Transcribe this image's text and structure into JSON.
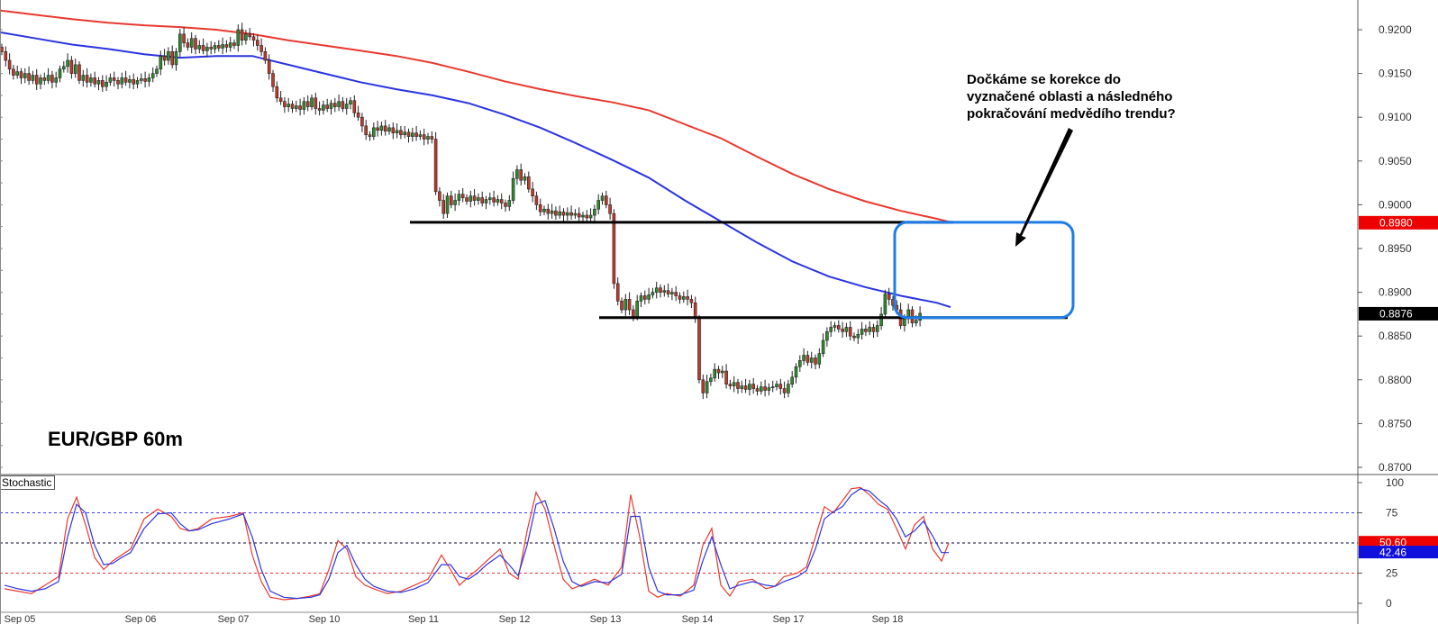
{
  "chart_data": [
    {
      "type": "candlestick",
      "title": "EUR/GBP 60m",
      "price_ticks": [
        "0.9200",
        "0.9150",
        "0.9100",
        "0.9050",
        "0.9000",
        "0.8950",
        "0.8900",
        "0.8850",
        "0.8800",
        "0.8750",
        "0.8700"
      ],
      "ylim": [
        0.87,
        0.921
      ],
      "date_ticks": [
        "Sep 05",
        "Sep 06",
        "Sep 07",
        "Sep 10",
        "Sep 11",
        "Sep 12",
        "Sep 13",
        "Sep 14",
        "Sep 17",
        "Sep 18"
      ],
      "price_series": [
        {
          "color": "#e8392f",
          "x": [
            0,
            40,
            80,
            120,
            160,
            200,
            240,
            280,
            320,
            360,
            400,
            440,
            480,
            520,
            560,
            600,
            640,
            680,
            720,
            760,
            800,
            840,
            880,
            920,
            960,
            1000,
            1040,
            1055
          ],
          "y": [
            0.9222,
            0.9217,
            0.9212,
            0.9208,
            0.9205,
            0.9203,
            0.92,
            0.9195,
            0.9188,
            0.9182,
            0.9176,
            0.917,
            0.9162,
            0.9152,
            0.9141,
            0.9132,
            0.9124,
            0.9117,
            0.9108,
            0.9092,
            0.9076,
            0.9055,
            0.9035,
            0.9018,
            0.9004,
            0.8993,
            0.8984,
            0.898
          ]
        },
        {
          "color": "#2b35e0",
          "x": [
            0,
            40,
            80,
            120,
            160,
            200,
            240,
            280,
            320,
            360,
            400,
            440,
            480,
            520,
            560,
            600,
            640,
            680,
            720,
            760,
            800,
            840,
            880,
            920,
            960,
            1000,
            1040,
            1055
          ],
          "y": [
            0.9197,
            0.919,
            0.9183,
            0.9178,
            0.9172,
            0.9168,
            0.917,
            0.917,
            0.916,
            0.915,
            0.914,
            0.9132,
            0.9125,
            0.9116,
            0.9103,
            0.9088,
            0.907,
            0.9051,
            0.9031,
            0.9005,
            0.8981,
            0.8957,
            0.8935,
            0.8918,
            0.8906,
            0.8896,
            0.8888,
            0.8883
          ]
        }
      ],
      "candles": {
        "x_start": 2,
        "x_step": 4.3,
        "close": [
          0.9175,
          0.9165,
          0.9155,
          0.9148,
          0.9152,
          0.9145,
          0.915,
          0.9142,
          0.9148,
          0.9138,
          0.9145,
          0.9142,
          0.9148,
          0.914,
          0.9145,
          0.9155,
          0.9158,
          0.9165,
          0.915,
          0.916,
          0.9142,
          0.9148,
          0.914,
          0.9145,
          0.9138,
          0.9142,
          0.9135,
          0.914,
          0.9145,
          0.9142,
          0.9138,
          0.9145,
          0.914,
          0.9143,
          0.9138,
          0.9142,
          0.9144,
          0.9141,
          0.9145,
          0.915,
          0.9155,
          0.917,
          0.9165,
          0.9175,
          0.916,
          0.9175,
          0.9195,
          0.9185,
          0.918,
          0.919,
          0.9178,
          0.9182,
          0.9176,
          0.918,
          0.9178,
          0.9182,
          0.9179,
          0.9183,
          0.918,
          0.9185,
          0.9182,
          0.92,
          0.9188,
          0.9195,
          0.9192,
          0.9188,
          0.9182,
          0.9175,
          0.9165,
          0.915,
          0.9135,
          0.9122,
          0.9118,
          0.9112,
          0.9115,
          0.911,
          0.9113,
          0.9109,
          0.9118,
          0.9112,
          0.9122,
          0.911,
          0.9108,
          0.9114,
          0.911,
          0.9116,
          0.9112,
          0.9118,
          0.911,
          0.9115,
          0.9119,
          0.9105,
          0.91,
          0.909,
          0.908,
          0.9078,
          0.9088,
          0.9085,
          0.909,
          0.9084,
          0.9088,
          0.9082,
          0.9085,
          0.908,
          0.9083,
          0.9078,
          0.9082,
          0.9078,
          0.908,
          0.9075,
          0.9078,
          0.9075,
          0.9015,
          0.9005,
          0.899,
          0.901,
          0.9,
          0.9005,
          0.9012,
          0.9008,
          0.9004,
          0.901,
          0.9005,
          0.9008,
          0.9002,
          0.9006,
          0.9008,
          0.9003,
          0.9006,
          0.9002,
          0.8998,
          0.9005,
          0.903,
          0.904,
          0.9028,
          0.9032,
          0.9018,
          0.901,
          0.9,
          0.8992,
          0.8995,
          0.899,
          0.8993,
          0.8988,
          0.8992,
          0.8988,
          0.8991,
          0.8988,
          0.899,
          0.8986,
          0.8988,
          0.8985,
          0.8988,
          0.8995,
          0.9005,
          0.901,
          0.9,
          0.899,
          0.891,
          0.889,
          0.888,
          0.8892,
          0.888,
          0.8872,
          0.889,
          0.8896,
          0.8892,
          0.8897,
          0.89,
          0.8905,
          0.89,
          0.8902,
          0.8898,
          0.89,
          0.8896,
          0.8892,
          0.8895,
          0.8892,
          0.8888,
          0.887,
          0.88,
          0.8785,
          0.8798,
          0.8802,
          0.8812,
          0.8808,
          0.881,
          0.8795,
          0.8793,
          0.8797,
          0.879,
          0.8793,
          0.8789,
          0.8795,
          0.879,
          0.8787,
          0.8792,
          0.8788,
          0.8791,
          0.8792,
          0.8795,
          0.879,
          0.8785,
          0.8795,
          0.8803,
          0.8815,
          0.8822,
          0.8828,
          0.882,
          0.8825,
          0.8818,
          0.883,
          0.8845,
          0.8855,
          0.886,
          0.8862,
          0.8858,
          0.8855,
          0.886,
          0.885,
          0.8848,
          0.8852,
          0.8858,
          0.8855,
          0.886,
          0.8855,
          0.8862,
          0.8875,
          0.8898,
          0.8892,
          0.8885,
          0.888,
          0.8862,
          0.887,
          0.888,
          0.8865,
          0.8868,
          0.8876
        ]
      },
      "levels": [
        {
          "y": 0.898,
          "x": [
            455,
            1058
          ]
        },
        {
          "y": 0.8871,
          "x": [
            665,
            1185
          ]
        }
      ],
      "zone": {
        "y": [
          0.8871,
          0.898
        ],
        "x": [
          993,
          1191
        ]
      },
      "annotation": [
        "Dočkáme se korekce do",
        "vyznačené oblasti a následného",
        "pokračování medvědího trendu?"
      ],
      "price_badges": [
        {
          "text": "0.8980",
          "color": "#ee0000",
          "y": 0.898
        },
        {
          "text": "0.8876",
          "color": "#000000",
          "y": 0.8876
        }
      ]
    },
    {
      "type": "line",
      "title": "Stochastic",
      "yticks": [
        "100",
        "75",
        "25",
        "0"
      ],
      "ylim": [
        0,
        100
      ],
      "levels": [
        75,
        50,
        25
      ],
      "series": [
        {
          "color": "#e8392f",
          "x": [
            5,
            20,
            35,
            50,
            65,
            75,
            85,
            95,
            105,
            115,
            125,
            135,
            145,
            160,
            175,
            190,
            200,
            210,
            220,
            235,
            255,
            270,
            280,
            290,
            300,
            315,
            330,
            345,
            355,
            365,
            375,
            385,
            395,
            405,
            415,
            430,
            445,
            460,
            475,
            490,
            500,
            510,
            520,
            530,
            540,
            555,
            565,
            575,
            585,
            595,
            605,
            615,
            625,
            635,
            645,
            660,
            675,
            690,
            700,
            710,
            720,
            730,
            740,
            755,
            770,
            780,
            790,
            800,
            810,
            820,
            835,
            850,
            860,
            870,
            885,
            895,
            905,
            915,
            925,
            935,
            945,
            955,
            965,
            975,
            985,
            995,
            1005,
            1015,
            1025,
            1035,
            1045,
            1053
          ],
          "y": [
            12,
            10,
            8,
            15,
            22,
            70,
            88,
            65,
            38,
            28,
            35,
            40,
            45,
            70,
            78,
            72,
            62,
            60,
            62,
            70,
            72,
            75,
            40,
            18,
            5,
            3,
            4,
            6,
            8,
            28,
            52,
            45,
            22,
            15,
            12,
            8,
            10,
            15,
            20,
            40,
            28,
            15,
            22,
            28,
            35,
            45,
            25,
            20,
            60,
            92,
            78,
            48,
            20,
            12,
            15,
            20,
            15,
            30,
            90,
            55,
            10,
            5,
            8,
            6,
            15,
            48,
            62,
            15,
            6,
            18,
            20,
            12,
            14,
            22,
            25,
            30,
            55,
            80,
            75,
            85,
            95,
            96,
            90,
            82,
            78,
            62,
            45,
            65,
            72,
            45,
            35,
            50
          ]
        },
        {
          "color": "#2b35e0",
          "x": [
            5,
            20,
            35,
            50,
            65,
            75,
            85,
            95,
            105,
            115,
            125,
            135,
            145,
            160,
            175,
            190,
            200,
            210,
            220,
            235,
            255,
            270,
            280,
            290,
            300,
            315,
            330,
            345,
            355,
            365,
            375,
            385,
            395,
            405,
            415,
            430,
            445,
            460,
            475,
            490,
            500,
            510,
            520,
            530,
            540,
            555,
            565,
            575,
            585,
            595,
            605,
            615,
            625,
            635,
            645,
            660,
            675,
            690,
            700,
            710,
            720,
            730,
            740,
            755,
            770,
            780,
            790,
            800,
            810,
            820,
            835,
            850,
            860,
            870,
            885,
            895,
            905,
            915,
            925,
            935,
            945,
            955,
            965,
            975,
            985,
            995,
            1005,
            1015,
            1025,
            1035,
            1045,
            1053
          ],
          "y": [
            15,
            12,
            10,
            12,
            18,
            55,
            82,
            75,
            48,
            32,
            33,
            38,
            42,
            62,
            74,
            75,
            66,
            60,
            61,
            66,
            70,
            74,
            55,
            28,
            10,
            5,
            4,
            5,
            7,
            20,
            42,
            48,
            32,
            20,
            14,
            10,
            9,
            12,
            17,
            32,
            32,
            22,
            20,
            25,
            32,
            40,
            32,
            23,
            48,
            82,
            85,
            62,
            35,
            18,
            14,
            18,
            17,
            24,
            72,
            72,
            30,
            10,
            7,
            7,
            11,
            35,
            55,
            32,
            12,
            15,
            18,
            15,
            14,
            18,
            22,
            27,
            45,
            70,
            76,
            80,
            90,
            95,
            93,
            86,
            80,
            70,
            55,
            60,
            68,
            56,
            42,
            42
          ]
        }
      ],
      "value_badges": [
        {
          "text": "50.60",
          "color": "#ee0000",
          "value": 50.6
        },
        {
          "text": "42.46",
          "color": "#1010dd",
          "value": 42.46
        }
      ]
    }
  ]
}
